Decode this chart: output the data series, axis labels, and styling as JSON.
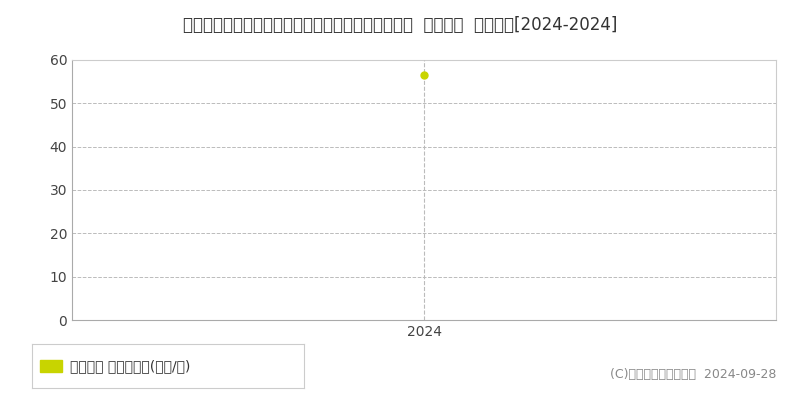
{
  "title": "滋賀県草津市南草津プリムタウン１丁目１１番８外  公示地価  地価推移[2024-2024]",
  "x_values": [
    2024
  ],
  "y_values": [
    56.5
  ],
  "xlim": [
    2023.5,
    2024.5
  ],
  "ylim": [
    0,
    60
  ],
  "yticks": [
    0,
    10,
    20,
    30,
    40,
    50,
    60
  ],
  "xticks": [
    2024
  ],
  "xticklabels": [
    "2024"
  ],
  "line_color": "#c8d400",
  "marker_color": "#c8d400",
  "grid_color": "#bbbbbb",
  "bg_color": "#ffffff",
  "plot_bg_color": "#ffffff",
  "legend_label": "公示地価 平均坪単価(万円/坪)",
  "copyright_text": "(C)土地価格ドットコム  2024-09-28",
  "title_fontsize": 12,
  "axis_fontsize": 10,
  "legend_fontsize": 10,
  "copyright_fontsize": 9,
  "marker_size": 5,
  "line_width": 1.5,
  "vline_color": "#bbbbbb",
  "vline_style": "--",
  "top_line_color": "#cccccc",
  "spine_color": "#aaaaaa"
}
